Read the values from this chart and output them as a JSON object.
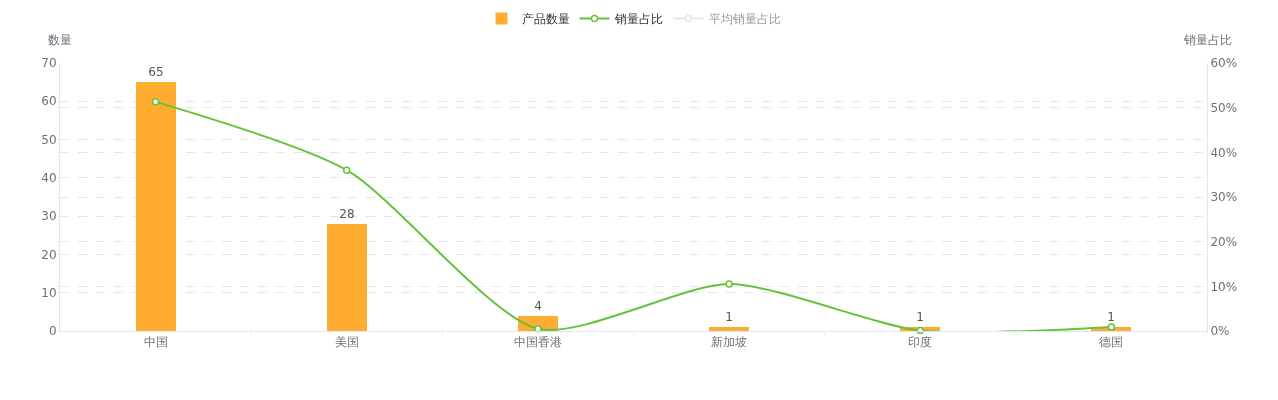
{
  "chart_data": {
    "type": "bar",
    "categories": [
      "中国",
      "美国",
      "中国香港",
      "新加坡",
      "印度",
      "德国"
    ],
    "series": [
      {
        "name": "产品数量",
        "color": "#ffad30",
        "values": [
          65,
          28,
          4,
          1,
          1,
          1
        ],
        "value_labels": [
          "65",
          "28",
          "4",
          "1",
          "1",
          "1"
        ]
      },
      {
        "name": "销量占比",
        "type": "line",
        "axis": "y2",
        "color": "#67c23a",
        "values": [
          51.3,
          36.0,
          0.5,
          10.5,
          0.1,
          0.9
        ]
      },
      {
        "name": "平均销量占比",
        "type": "line",
        "axis": "y2",
        "color": "#cccccc",
        "values": [
          null,
          null,
          null,
          null,
          null,
          null
        ]
      }
    ],
    "ylabel": "数量",
    "y2label": "销量占比",
    "ylim": [
      0,
      70
    ],
    "yticks": [
      0,
      10,
      20,
      30,
      40,
      50,
      60,
      70
    ],
    "y2lim": [
      0,
      60
    ],
    "y2ticks": [
      {
        "value": 0,
        "label": "0%"
      },
      {
        "value": 10,
        "label": "10%"
      },
      {
        "value": 20,
        "label": "20%"
      },
      {
        "value": 30,
        "label": "30%"
      },
      {
        "value": 40,
        "label": "40%"
      },
      {
        "value": 50,
        "label": "50%"
      },
      {
        "value": 60,
        "label": "60%"
      }
    ],
    "grid": true,
    "legend": "top",
    "marker": "circle"
  }
}
